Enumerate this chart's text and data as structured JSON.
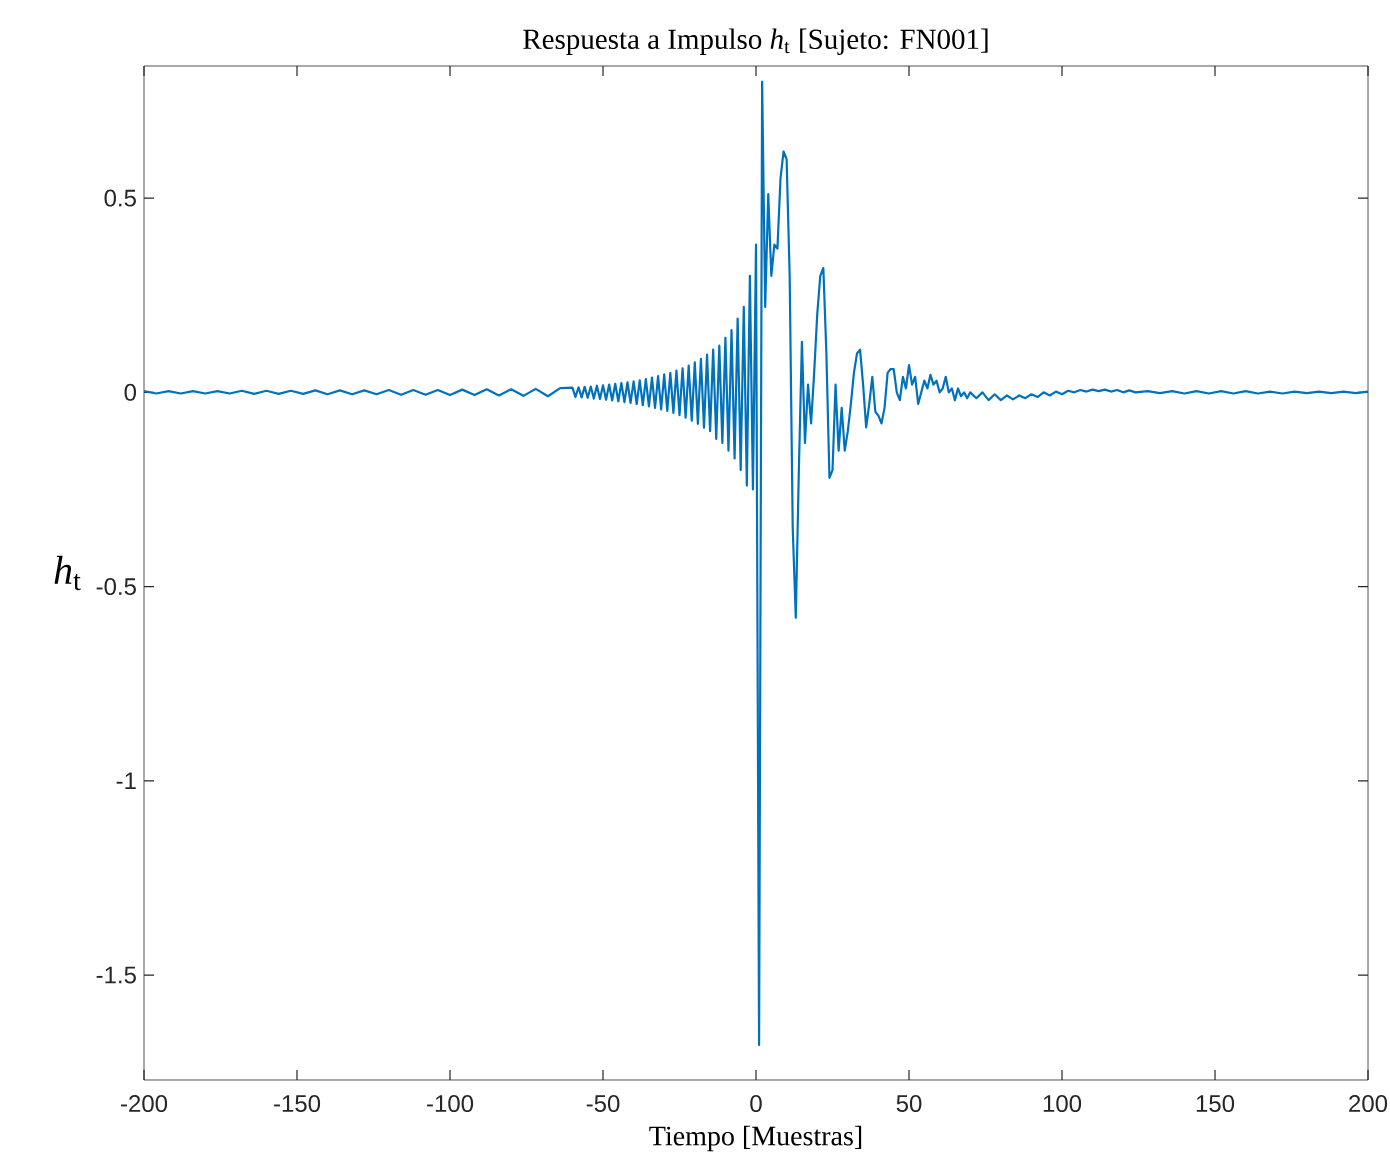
{
  "chart_data": {
    "type": "line",
    "title": "Respuesta a Impulso *h*$_{t}$ [Sujeto: FN001]",
    "xlabel": "Tiempo [Muestras]",
    "ylabel": "*h*$_{t}$",
    "xlim": [
      -200,
      200
    ],
    "ylim": [
      -1.77,
      0.84
    ],
    "xticks": [
      -200,
      -150,
      -100,
      -50,
      0,
      50,
      100,
      150,
      200
    ],
    "yticks": [
      -1.5,
      -1,
      -0.5,
      0,
      0.5
    ],
    "line_style": "solid",
    "marker": "none",
    "series": [
      {
        "color": "#0072bd",
        "x": [
          -200,
          -196,
          -192,
          -188,
          -184,
          -180,
          -176,
          -172,
          -168,
          -164,
          -160,
          -156,
          -152,
          -148,
          -144,
          -140,
          -136,
          -132,
          -128,
          -124,
          -120,
          -116,
          -112,
          -108,
          -104,
          -100,
          -96,
          -92,
          -88,
          -84,
          -80,
          -76,
          -72,
          -68,
          -64,
          -60,
          -59,
          -58,
          -57,
          -56,
          -55,
          -54,
          -53,
          -52,
          -51,
          -50,
          -49,
          -48,
          -47,
          -46,
          -45,
          -44,
          -43,
          -42,
          -41,
          -40,
          -39,
          -38,
          -37,
          -36,
          -35,
          -34,
          -33,
          -32,
          -31,
          -30,
          -29,
          -28,
          -27,
          -26,
          -25,
          -24,
          -23,
          -22,
          -21,
          -20,
          -19,
          -18,
          -17,
          -16,
          -15,
          -14,
          -13,
          -12,
          -11,
          -10,
          -9,
          -8,
          -7,
          -6,
          -5,
          -4,
          -3,
          -2,
          -1,
          0,
          1,
          2,
          3,
          4,
          5,
          6,
          7,
          8,
          9,
          10,
          11,
          12,
          13,
          14,
          15,
          16,
          17,
          18,
          19,
          20,
          21,
          22,
          23,
          24,
          25,
          26,
          27,
          28,
          29,
          30,
          31,
          32,
          33,
          34,
          35,
          36,
          37,
          38,
          39,
          40,
          41,
          42,
          43,
          44,
          45,
          46,
          47,
          48,
          49,
          50,
          51,
          52,
          53,
          54,
          55,
          56,
          57,
          58,
          59,
          60,
          61,
          62,
          63,
          64,
          65,
          66,
          67,
          68,
          69,
          70,
          72,
          74,
          76,
          78,
          80,
          82,
          84,
          86,
          88,
          90,
          92,
          94,
          96,
          98,
          100,
          102,
          104,
          106,
          108,
          110,
          112,
          114,
          116,
          118,
          120,
          122,
          124,
          128,
          132,
          136,
          140,
          144,
          148,
          152,
          156,
          160,
          164,
          168,
          172,
          176,
          180,
          184,
          188,
          192,
          196,
          200
        ],
        "values": [
          0.003,
          -0.003,
          0.003,
          -0.003,
          0.003,
          -0.003,
          0.003,
          -0.003,
          0.004,
          -0.004,
          0.004,
          -0.004,
          0.004,
          -0.004,
          0.005,
          -0.005,
          0.005,
          -0.005,
          0.005,
          -0.005,
          0.006,
          -0.006,
          0.006,
          -0.006,
          0.006,
          -0.007,
          0.007,
          -0.007,
          0.008,
          -0.008,
          0.008,
          -0.009,
          0.009,
          -0.01,
          0.011,
          0.012,
          -0.012,
          0.013,
          -0.013,
          0.014,
          -0.014,
          0.015,
          -0.016,
          0.017,
          -0.017,
          0.018,
          -0.019,
          0.02,
          -0.021,
          0.022,
          -0.023,
          0.024,
          -0.025,
          0.026,
          -0.027,
          0.028,
          -0.03,
          0.031,
          -0.033,
          0.034,
          -0.036,
          0.038,
          -0.04,
          0.042,
          -0.044,
          0.046,
          -0.048,
          0.05,
          -0.053,
          0.056,
          -0.059,
          0.062,
          -0.065,
          0.069,
          -0.073,
          0.077,
          -0.081,
          0.086,
          -0.091,
          0.097,
          -0.1,
          0.11,
          -0.12,
          0.12,
          -0.13,
          0.14,
          -0.15,
          0.16,
          -0.17,
          0.19,
          -0.2,
          0.22,
          -0.24,
          0.3,
          -0.25,
          0.38,
          -1.68,
          0.8,
          0.22,
          0.51,
          0.3,
          0.38,
          0.37,
          0.55,
          0.62,
          0.6,
          0.3,
          -0.35,
          -0.58,
          -0.2,
          0.13,
          -0.13,
          0.02,
          -0.08,
          0.05,
          0.2,
          0.3,
          0.32,
          0.1,
          -0.22,
          -0.2,
          0.02,
          -0.15,
          -0.04,
          -0.15,
          -0.1,
          -0.03,
          0.05,
          0.1,
          0.11,
          0.02,
          -0.09,
          -0.03,
          0.04,
          -0.05,
          -0.06,
          -0.08,
          -0.04,
          0.05,
          0.06,
          0.06,
          0.0,
          -0.02,
          0.04,
          0.01,
          0.07,
          0.02,
          0.04,
          -0.03,
          0.0,
          0.03,
          0.01,
          0.045,
          0.02,
          0.03,
          0.0,
          0.01,
          0.04,
          0.0,
          0.01,
          -0.02,
          0.01,
          -0.01,
          0.0,
          -0.015,
          0.0,
          -0.015,
          0.0,
          -0.02,
          -0.005,
          -0.02,
          -0.008,
          -0.018,
          -0.008,
          -0.015,
          -0.005,
          -0.012,
          0.0,
          -0.008,
          0.002,
          -0.005,
          0.004,
          0.0,
          0.006,
          0.002,
          0.007,
          0.003,
          0.007,
          0.002,
          0.006,
          0.0,
          0.005,
          0.0,
          0.003,
          -0.002,
          0.003,
          -0.003,
          0.003,
          -0.003,
          0.003,
          -0.003,
          0.003,
          -0.003,
          0.002,
          -0.003,
          0.002,
          -0.002,
          0.002,
          -0.002,
          0.002,
          -0.002,
          0.002
        ]
      }
    ]
  }
}
